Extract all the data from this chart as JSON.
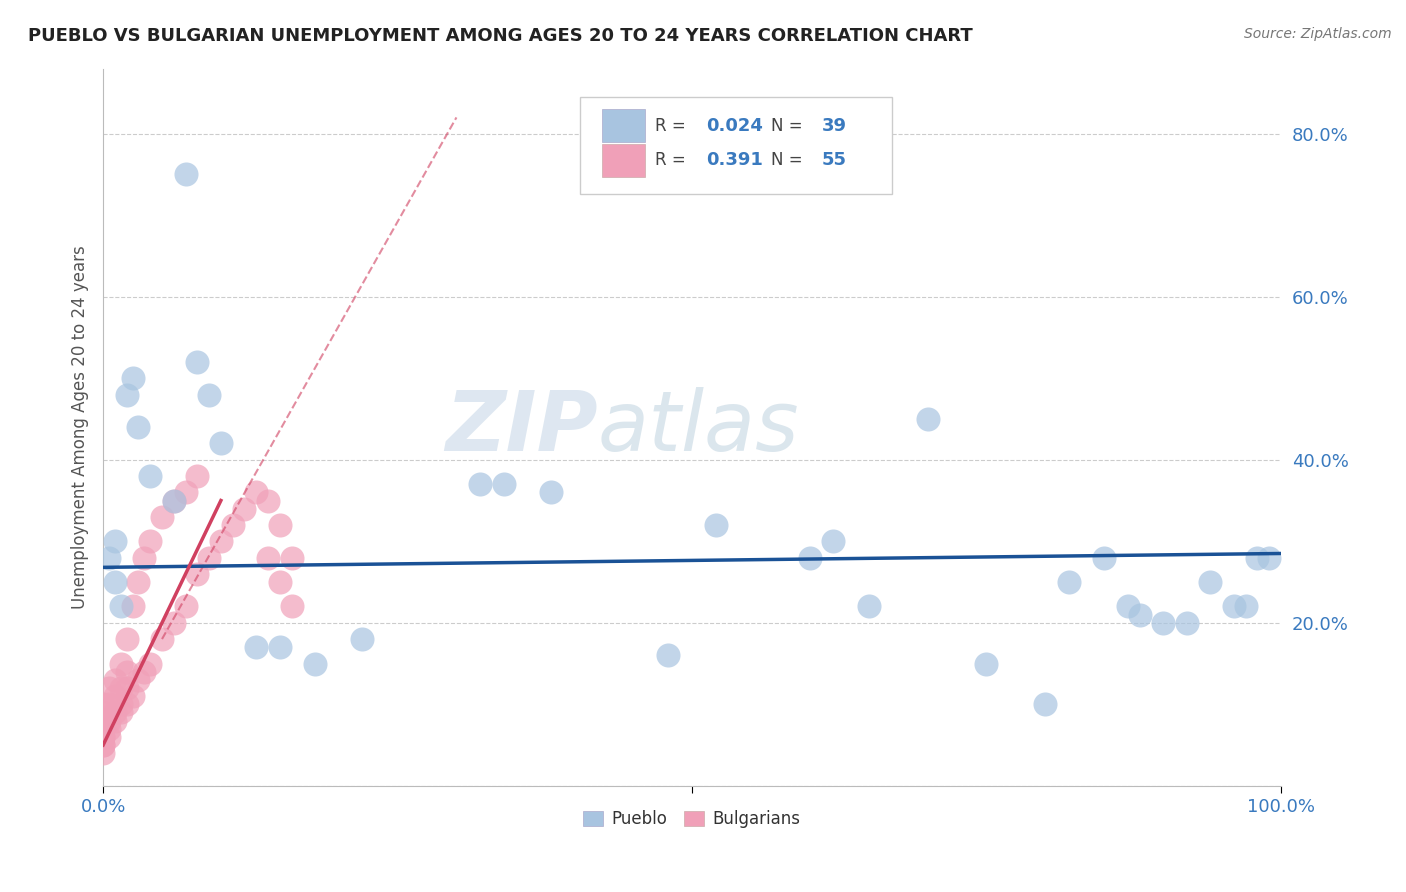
{
  "title": "PUEBLO VS BULGARIAN UNEMPLOYMENT AMONG AGES 20 TO 24 YEARS CORRELATION CHART",
  "source": "Source: ZipAtlas.com",
  "ylabel": "Unemployment Among Ages 20 to 24 years",
  "watermark_zip": "ZIP",
  "watermark_atlas": "atlas",
  "xlim": [
    0,
    1.0
  ],
  "ylim": [
    0,
    0.88
  ],
  "yticks": [
    0.0,
    0.2,
    0.4,
    0.6,
    0.8
  ],
  "ytick_labels": [
    "",
    "20.0%",
    "40.0%",
    "60.0%",
    "80.0%"
  ],
  "xtick_labels_pos": [
    0.0,
    0.5,
    1.0
  ],
  "xtick_labels": [
    "0.0%",
    "",
    "100.0%"
  ],
  "legend_r1": "0.024",
  "legend_n1": "39",
  "legend_r2": "0.391",
  "legend_n2": "55",
  "pueblo_color": "#a8c4e0",
  "bulgarian_color": "#f0a0b8",
  "pueblo_edge_color": "#7aaad0",
  "bulgarian_edge_color": "#e888a8",
  "pueblo_line_color": "#1a5296",
  "bulgarian_line_color": "#d04060",
  "text_blue": "#3a7abf",
  "text_dark": "#333333",
  "grid_color": "#cccccc",
  "pueblo_x": [
    0.005,
    0.01,
    0.01,
    0.015,
    0.02,
    0.025,
    0.03,
    0.04,
    0.06,
    0.07,
    0.08,
    0.09,
    0.1,
    0.13,
    0.15,
    0.18,
    0.22,
    0.32,
    0.34,
    0.38,
    0.48,
    0.52,
    0.6,
    0.62,
    0.65,
    0.7,
    0.75,
    0.8,
    0.82,
    0.85,
    0.87,
    0.88,
    0.9,
    0.92,
    0.94,
    0.96,
    0.97,
    0.98,
    0.99
  ],
  "pueblo_y": [
    0.28,
    0.25,
    0.3,
    0.22,
    0.48,
    0.5,
    0.44,
    0.38,
    0.35,
    0.75,
    0.52,
    0.48,
    0.42,
    0.17,
    0.17,
    0.15,
    0.18,
    0.37,
    0.37,
    0.36,
    0.16,
    0.32,
    0.28,
    0.3,
    0.22,
    0.45,
    0.15,
    0.1,
    0.25,
    0.28,
    0.22,
    0.21,
    0.2,
    0.2,
    0.25,
    0.22,
    0.22,
    0.28,
    0.28
  ],
  "bulgarian_x": [
    0.0,
    0.0,
    0.0,
    0.0,
    0.0,
    0.0,
    0.0,
    0.0,
    0.0,
    0.0,
    0.0,
    0.005,
    0.005,
    0.005,
    0.005,
    0.005,
    0.01,
    0.01,
    0.01,
    0.01,
    0.015,
    0.015,
    0.015,
    0.015,
    0.02,
    0.02,
    0.02,
    0.02,
    0.025,
    0.025,
    0.03,
    0.03,
    0.035,
    0.035,
    0.04,
    0.04,
    0.05,
    0.05,
    0.06,
    0.06,
    0.07,
    0.07,
    0.08,
    0.08,
    0.09,
    0.1,
    0.11,
    0.12,
    0.13,
    0.14,
    0.14,
    0.15,
    0.15,
    0.16,
    0.16
  ],
  "bulgarian_y": [
    0.04,
    0.05,
    0.05,
    0.06,
    0.06,
    0.07,
    0.07,
    0.08,
    0.08,
    0.09,
    0.1,
    0.06,
    0.07,
    0.08,
    0.1,
    0.12,
    0.08,
    0.09,
    0.11,
    0.13,
    0.09,
    0.1,
    0.12,
    0.15,
    0.1,
    0.12,
    0.14,
    0.18,
    0.11,
    0.22,
    0.13,
    0.25,
    0.14,
    0.28,
    0.15,
    0.3,
    0.18,
    0.33,
    0.2,
    0.35,
    0.22,
    0.36,
    0.26,
    0.38,
    0.28,
    0.3,
    0.32,
    0.34,
    0.36,
    0.28,
    0.35,
    0.25,
    0.32,
    0.22,
    0.28
  ]
}
